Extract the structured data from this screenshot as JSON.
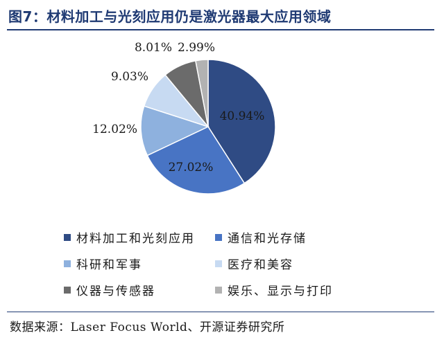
{
  "title": "图7：材料加工与光刻应用仍是激光器最大应用领域",
  "chart_data": {
    "type": "pie",
    "title": "图7：材料加工与光刻应用仍是激光器最大应用领域",
    "categories": [
      "材料加工和光刻应用",
      "通信和光存储",
      "科研和军事",
      "医疗和美容",
      "仪器与传感器",
      "娱乐、显示与打印"
    ],
    "values": [
      40.94,
      27.02,
      12.02,
      9.03,
      8.01,
      2.99
    ],
    "labels": [
      "40.94%",
      "27.02%",
      "12.02%",
      "9.03%",
      "8.01%",
      "2.99%"
    ],
    "colors": [
      "#2f4b84",
      "#4874c4",
      "#8eb1de",
      "#c7daf2",
      "#6b6b6b",
      "#b2b2b2"
    ],
    "legend_position": "bottom",
    "start": "12 o'clock",
    "direction": "clockwise"
  },
  "source": "数据来源：Laser Focus World、开源证券研究所"
}
